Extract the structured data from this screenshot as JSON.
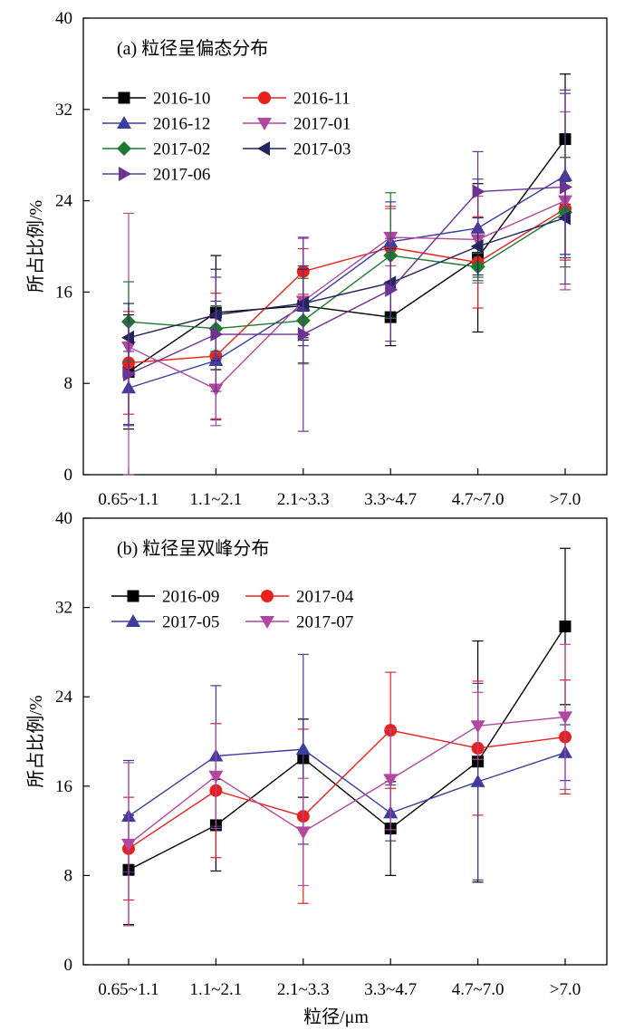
{
  "chart_data": [
    {
      "type": "line",
      "title": "(a) 粒径呈偏态分布",
      "ylabel": "所占比例/%",
      "xlabel": "",
      "ylim": [
        0,
        40
      ],
      "yticks": [
        0,
        8,
        16,
        24,
        32,
        40
      ],
      "grid": false,
      "legend": "top-left, 2 columns",
      "categories": [
        "0.65~1.1",
        "1.1~2.1",
        "2.1~3.3",
        "3.3~4.7",
        "4.7~7.0",
        ">7.0"
      ],
      "series": [
        {
          "name": "2016-10",
          "color": "#000000",
          "marker": "square",
          "values": [
            9.0,
            14.2,
            14.8,
            13.8,
            19.0,
            29.4
          ],
          "errors": [
            5.0,
            5.0,
            3.0,
            2.5,
            6.5,
            5.7
          ]
        },
        {
          "name": "2016-11",
          "color": "#e8211d",
          "marker": "circle",
          "values": [
            9.8,
            10.4,
            17.8,
            19.9,
            18.6,
            23.3
          ],
          "errors": [
            4.5,
            5.5,
            2.0,
            3.6,
            4.0,
            4.5
          ]
        },
        {
          "name": "2016-12",
          "color": "#3d3d9e",
          "marker": "triangle-up",
          "values": [
            7.6,
            10.0,
            14.8,
            20.4,
            21.6,
            26.2
          ],
          "errors": [
            3.2,
            5.2,
            3.5,
            3.5,
            4.3,
            7.2
          ]
        },
        {
          "name": "2017-01",
          "color": "#b1479f",
          "marker": "triangle-down",
          "values": [
            11.2,
            7.5,
            15.2,
            20.8,
            20.6,
            24.0
          ],
          "errors": [
            11.7,
            3.2,
            5.5,
            2.5,
            3.8,
            7.8
          ]
        },
        {
          "name": "2017-02",
          "color": "#1c7a2e",
          "marker": "diamond",
          "values": [
            13.4,
            12.8,
            13.5,
            19.2,
            18.2,
            23.0
          ],
          "errors": [
            3.5,
            2.0,
            3.7,
            5.5,
            1.2,
            4.8
          ]
        },
        {
          "name": "2017-03",
          "color": "#24245e",
          "marker": "triangle-left",
          "values": [
            12.0,
            14.0,
            15.0,
            16.8,
            20.0,
            22.5
          ],
          "errors": [
            3.0,
            4.0,
            3.0,
            3.0,
            2.5,
            3.2
          ]
        },
        {
          "name": "2017-06",
          "color": "#6c3394",
          "marker": "triangle-right",
          "values": [
            8.8,
            12.3,
            12.3,
            16.2,
            24.8,
            25.2
          ],
          "errors": [
            4.5,
            5.0,
            8.5,
            4.5,
            3.5,
            8.5
          ]
        }
      ]
    },
    {
      "type": "line",
      "title": "(b) 粒径呈双峰分布",
      "ylabel": "所占比例/%",
      "xlabel": "粒径/μm",
      "ylim": [
        0,
        40
      ],
      "yticks": [
        0,
        8,
        16,
        24,
        32,
        40
      ],
      "grid": false,
      "legend": "top-left, 2 columns",
      "categories": [
        "0.65~1.1",
        "1.1~2.1",
        "2.1~3.3",
        "3.3~4.7",
        "4.7~7.0",
        ">7.0"
      ],
      "series": [
        {
          "name": "2016-09",
          "color": "#000000",
          "marker": "square",
          "values": [
            8.5,
            12.5,
            18.5,
            12.2,
            18.2,
            30.3
          ],
          "errors": [
            4.9,
            4.1,
            3.5,
            4.2,
            10.8,
            7.0
          ]
        },
        {
          "name": "2017-04",
          "color": "#e8211d",
          "marker": "circle",
          "values": [
            10.4,
            15.6,
            13.3,
            21.0,
            19.4,
            20.4
          ],
          "errors": [
            4.6,
            6.0,
            7.8,
            5.2,
            6.0,
            5.1
          ]
        },
        {
          "name": "2017-05",
          "color": "#3d3d9e",
          "marker": "triangle-up",
          "values": [
            13.3,
            18.7,
            19.3,
            13.6,
            16.4,
            19.0
          ],
          "errors": [
            5.0,
            6.3,
            8.5,
            2.5,
            8.8,
            2.5
          ]
        },
        {
          "name": "2017-07",
          "color": "#b1479f",
          "marker": "triangle-down",
          "values": [
            10.8,
            16.9,
            11.9,
            16.6,
            21.4,
            22.2
          ],
          "errors": [
            7.3,
            4.7,
            4.8,
            4.5,
            3.0,
            6.5
          ]
        }
      ]
    }
  ]
}
